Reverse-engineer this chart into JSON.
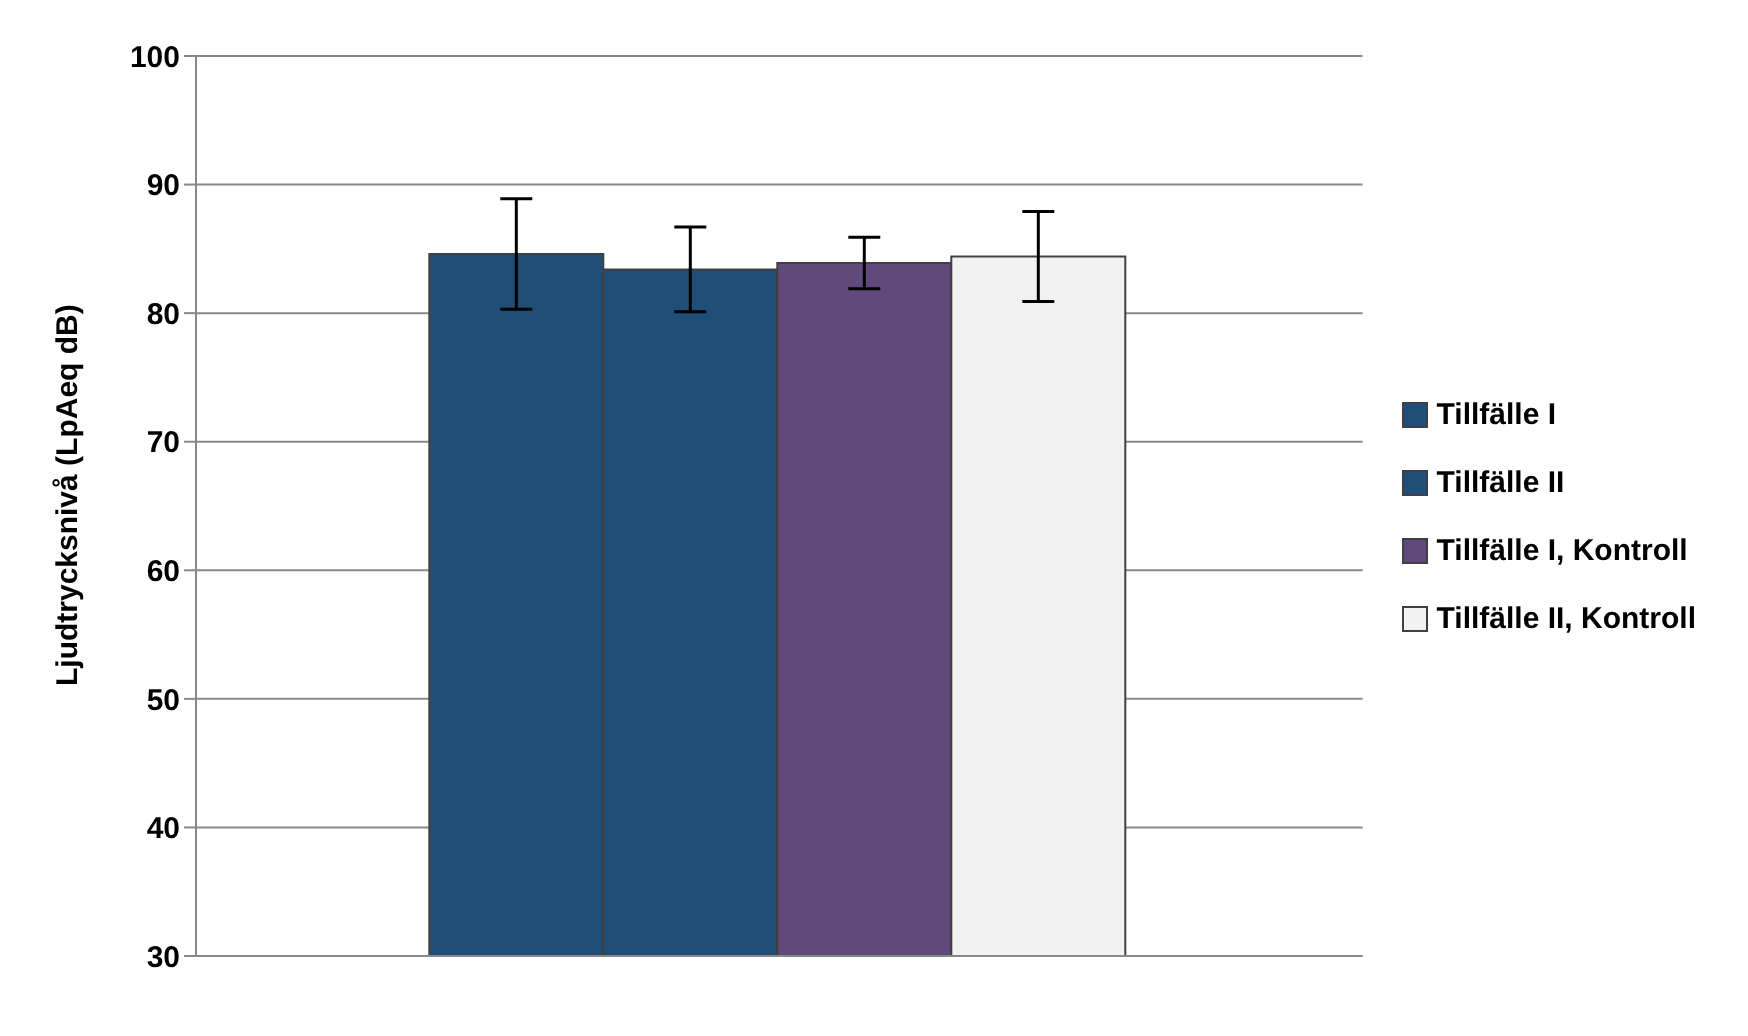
{
  "chart_data": {
    "type": "bar",
    "ylabel": "Ljudtrycksnivå (LpAeq dB)",
    "categories": [
      null
    ],
    "series": [
      {
        "name": "Tillfälle I",
        "color": "#1f4e79",
        "values": [
          84.6
        ],
        "errors": [
          4.3
        ]
      },
      {
        "name": "Tillfälle II",
        "color": "#1f4e79",
        "values": [
          83.4
        ],
        "errors": [
          3.3
        ]
      },
      {
        "name": "Tillfälle I, Kontroll",
        "color": "#604a7b",
        "values": [
          83.9
        ],
        "errors": [
          2.0
        ]
      },
      {
        "name": "Tillfälle II, Kontroll",
        "color": "#f2f2f2",
        "values": [
          84.4
        ],
        "errors": [
          3.5
        ]
      }
    ],
    "ylim": [
      30,
      100
    ],
    "yticks": [
      30,
      40,
      50,
      60,
      70,
      80,
      90,
      100
    ],
    "grid": "y",
    "legend": "right"
  }
}
